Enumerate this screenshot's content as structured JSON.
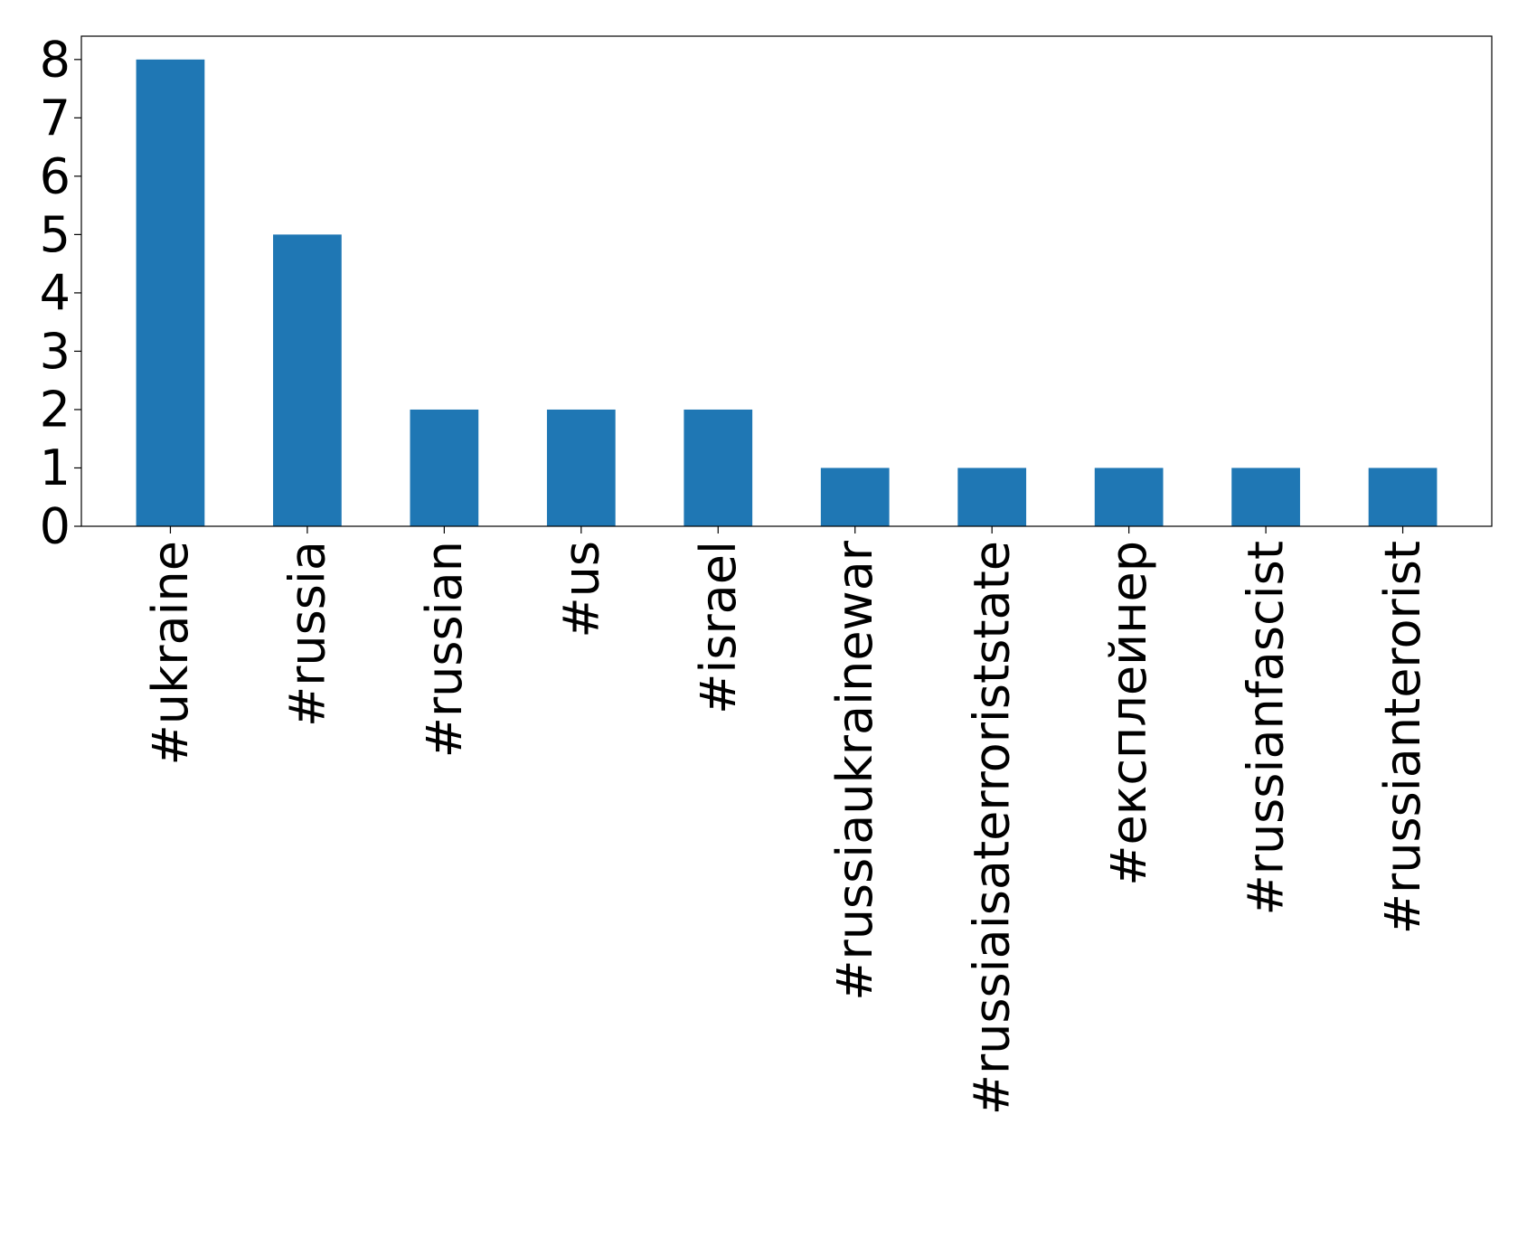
{
  "chart_data": {
    "type": "bar",
    "title": "",
    "xlabel": "",
    "ylabel": "",
    "categories": [
      "#ukraine",
      "#russia",
      "#russian",
      "#us",
      "#israel",
      "#russiaukrainewar",
      "#russiaisaterroriststate",
      "#експлейнер",
      "#russianfascist",
      "#russianterorist"
    ],
    "values": [
      8,
      5,
      2,
      2,
      2,
      1,
      1,
      1,
      1,
      1
    ],
    "ylim": [
      0,
      8.4
    ],
    "yticks": [
      0,
      1,
      2,
      3,
      4,
      5,
      6,
      7,
      8
    ],
    "grid": false,
    "legend": "none",
    "bar_color": "#1f77b4"
  }
}
